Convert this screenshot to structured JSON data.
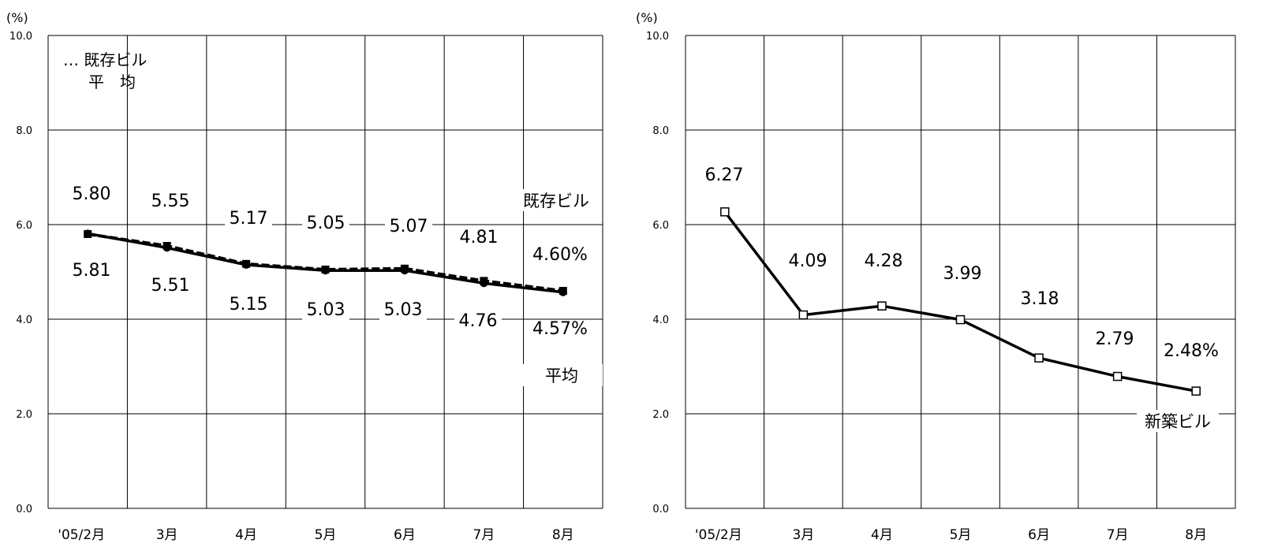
{
  "chart_data": [
    {
      "type": "line",
      "unit_label": "(%)",
      "categories": [
        "'05/2月",
        "3月",
        "4月",
        "5月",
        "6月",
        "7月",
        "8月"
      ],
      "ylim": [
        0,
        10
      ],
      "yticks": [
        "0.0",
        "2.0",
        "4.0",
        "6.0",
        "8.0",
        "10.0"
      ],
      "grid": true,
      "legend": {
        "position": "top-left",
        "line1": "… 既存ビル",
        "line2": "平　均"
      },
      "series": [
        {
          "name": "既存ビル",
          "style": "dashed",
          "marker": "square",
          "values": [
            5.8,
            5.55,
            5.17,
            5.05,
            5.07,
            4.81,
            4.6
          ],
          "labels": [
            "5.80",
            "5.55",
            "5.17",
            "5.05",
            "5.07",
            "4.81",
            "4.60%"
          ]
        },
        {
          "name": "平均",
          "style": "solid",
          "marker": "circle",
          "values": [
            5.81,
            5.51,
            5.15,
            5.03,
            5.03,
            4.76,
            4.57
          ],
          "labels": [
            "5.81",
            "5.51",
            "5.15",
            "5.03",
            "5.03",
            "4.76",
            "4.57%"
          ]
        }
      ]
    },
    {
      "type": "line",
      "unit_label": "(%)",
      "categories": [
        "'05/2月",
        "3月",
        "4月",
        "5月",
        "6月",
        "7月",
        "8月"
      ],
      "ylim": [
        0,
        10
      ],
      "yticks": [
        "0.0",
        "2.0",
        "4.0",
        "6.0",
        "8.0",
        "10.0"
      ],
      "grid": true,
      "series": [
        {
          "name": "新築ビル",
          "style": "solid",
          "marker": "open-square",
          "values": [
            6.27,
            4.09,
            4.28,
            3.99,
            3.18,
            2.79,
            2.48
          ],
          "labels": [
            "6.27",
            "4.09",
            "4.28",
            "3.99",
            "3.18",
            "2.79",
            "2.48%"
          ]
        }
      ]
    }
  ]
}
